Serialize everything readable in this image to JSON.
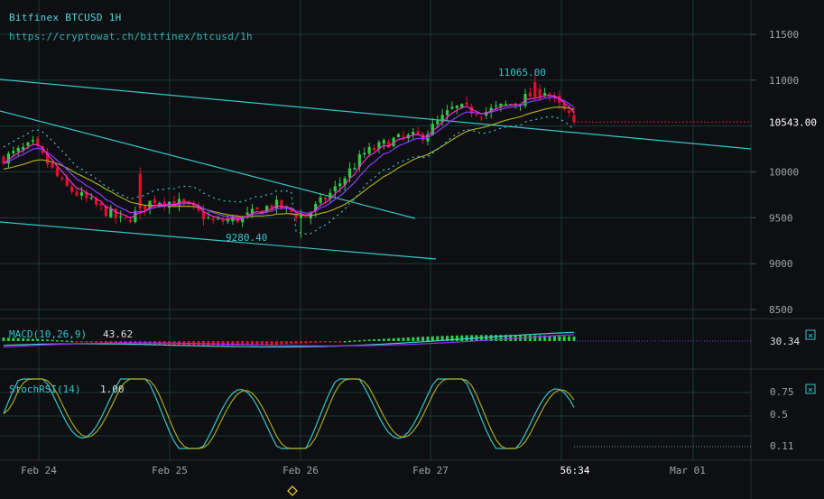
{
  "header": {
    "title": "Bitfinex BTCUSD 1H",
    "url": "https://cryptowat.ch/bitfinex/btcusd/1h"
  },
  "colors": {
    "background": "#0e0f13",
    "grid": "#1b3a36",
    "text_teal": "#33c6c6",
    "axis_text": "#9aa6a6",
    "up_candle": "#2ecc40",
    "down_candle": "#e0102a",
    "ema_fast": "#ff2bd1",
    "ema_mid": "#8a3cff",
    "ema_slow": "#a8a81c",
    "trendline": "#33c6c6",
    "macd_line": "#3fd0d0",
    "signal_line": "#9a2bff",
    "stoch_k": "#33c6c6",
    "stoch_d": "#a8a81c"
  },
  "price_axis": {
    "ticks": [
      "11500",
      "11000",
      "10500",
      "10000",
      "9500",
      "9000",
      "8500"
    ],
    "current": "10543.00"
  },
  "annotations": {
    "high": "11065.00",
    "low": "9280.40"
  },
  "x_axis": {
    "ticks": [
      "Feb 24",
      "Feb 25",
      "Feb 26",
      "Feb 27",
      "56:34",
      "Mar 01"
    ]
  },
  "macd": {
    "label": "MACD(10,26,9)",
    "value": "43.62",
    "axis_value": "30.34",
    "close_icon": "close-icon"
  },
  "stochrsi": {
    "label": "StochRSI(14)",
    "value": "1.00",
    "ticks": [
      "0.75",
      "0.5",
      "0.11"
    ],
    "close_icon": "close-icon"
  },
  "chart_data": {
    "type": "candlestick",
    "title": "Bitfinex BTCUSD 1H",
    "ylim": [
      8500,
      11500
    ],
    "categories": [
      "Feb 24",
      "Feb 25",
      "Feb 26",
      "Feb 27",
      "Mar 01"
    ],
    "approx_close_path": [
      {
        "x": "Feb 23 late",
        "y": 10150
      },
      {
        "x": "Feb 24 00:00",
        "y": 10300
      },
      {
        "x": "Feb 24 06:00",
        "y": 9850
      },
      {
        "x": "Feb 24 12:00",
        "y": 9650
      },
      {
        "x": "Feb 24 18:00",
        "y": 9450
      },
      {
        "x": "Feb 25 00:00",
        "y": 9700
      },
      {
        "x": "Feb 25 06:00",
        "y": 9650
      },
      {
        "x": "Feb 25 12:00",
        "y": 9450
      },
      {
        "x": "Feb 25 18:00",
        "y": 9500
      },
      {
        "x": "Feb 26 00:00",
        "y": 9650
      },
      {
        "x": "Feb 26 06:00",
        "y": 9500
      },
      {
        "x": "Feb 26 10:00",
        "y": 9800
      },
      {
        "x": "Feb 26 14:00",
        "y": 10200
      },
      {
        "x": "Feb 26 20:00",
        "y": 10350
      },
      {
        "x": "Feb 27 00:00",
        "y": 10400
      },
      {
        "x": "Feb 27 04:00",
        "y": 10700
      },
      {
        "x": "Feb 27 10:00",
        "y": 10650
      },
      {
        "x": "Feb 27 16:00",
        "y": 10750
      },
      {
        "x": "Feb 27 22:00",
        "y": 10900
      },
      {
        "x": "Feb 28 02:00",
        "y": 10543
      }
    ],
    "high": 11065.0,
    "low": 9280.4,
    "last": 10543.0,
    "indicators": {
      "macd": {
        "params": "10,26,9",
        "value": 43.62,
        "axis": 30.34
      },
      "stochrsi": {
        "period": 14,
        "value": 1.0,
        "ticks": [
          0.75,
          0.5,
          0.11
        ]
      }
    }
  }
}
